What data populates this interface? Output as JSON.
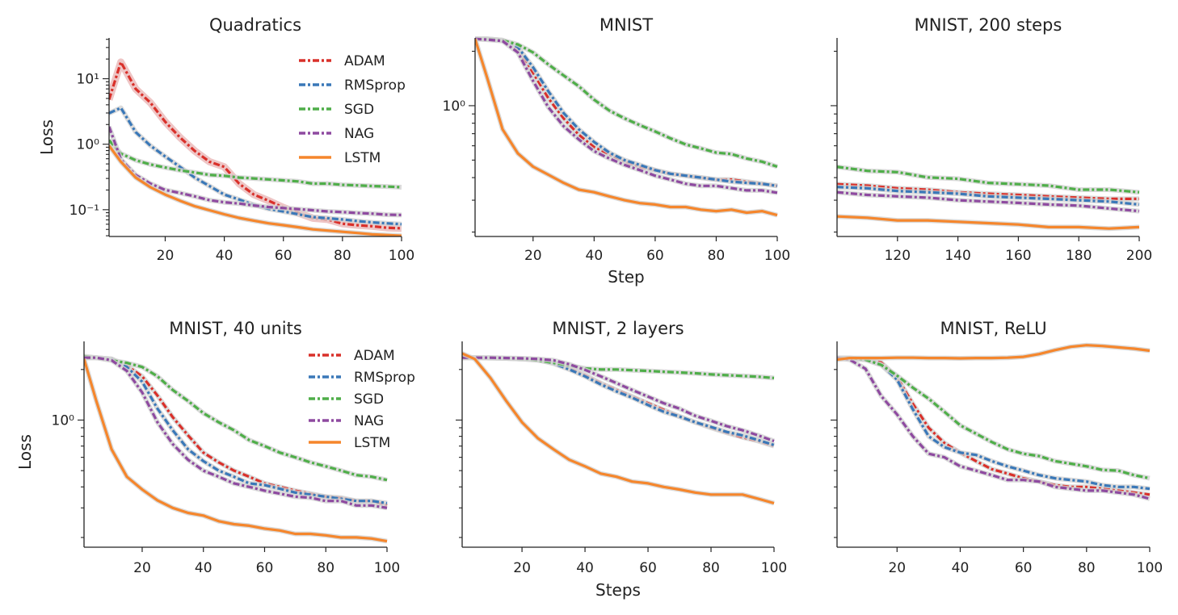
{
  "series_styles": {
    "ADAM": {
      "color": "#d9302a",
      "dashed": true
    },
    "RMSprop": {
      "color": "#3a78b8",
      "dashed": true
    },
    "SGD": {
      "color": "#4fae49",
      "dashed": true
    },
    "NAG": {
      "color": "#8e4aa0",
      "dashed": true
    },
    "LSTM": {
      "color": "#f5862c",
      "dashed": false
    }
  },
  "chart_data": [
    {
      "type": "line",
      "title": "Quadratics",
      "xlabel": "",
      "ylabel": "Loss",
      "yscale": "log",
      "xlim": [
        1,
        100
      ],
      "ylim": [
        0.039,
        42
      ],
      "xticks": [
        {
          "value": 20,
          "label": "20"
        },
        {
          "value": 40,
          "label": "40"
        },
        {
          "value": 60,
          "label": "60"
        },
        {
          "value": 80,
          "label": "80"
        },
        {
          "value": 100,
          "label": "100"
        }
      ],
      "yticks": [
        {
          "value": 10,
          "label": "10¹"
        },
        {
          "value": 1,
          "label": "10⁰"
        },
        {
          "value": 0.1,
          "label": "10⁻¹"
        }
      ],
      "legend": "top-right",
      "x": [
        1,
        5,
        10,
        15,
        20,
        25,
        30,
        35,
        40,
        45,
        50,
        55,
        60,
        65,
        70,
        75,
        80,
        85,
        90,
        95,
        100
      ],
      "series": [
        {
          "name": "ADAM",
          "values": [
            4.8,
            18,
            7,
            4.3,
            2.2,
            1.27,
            0.79,
            0.54,
            0.45,
            0.25,
            0.17,
            0.137,
            0.108,
            0.089,
            0.074,
            0.071,
            0.061,
            0.058,
            0.056,
            0.053,
            0.052
          ]
        },
        {
          "name": "RMSprop",
          "values": [
            2.97,
            3.6,
            1.53,
            0.95,
            0.65,
            0.45,
            0.31,
            0.23,
            0.17,
            0.143,
            0.119,
            0.103,
            0.094,
            0.085,
            0.077,
            0.074,
            0.071,
            0.067,
            0.064,
            0.062,
            0.06
          ]
        },
        {
          "name": "SGD",
          "values": [
            1.15,
            0.72,
            0.57,
            0.49,
            0.44,
            0.4,
            0.37,
            0.34,
            0.33,
            0.31,
            0.3,
            0.29,
            0.28,
            0.27,
            0.25,
            0.25,
            0.24,
            0.235,
            0.23,
            0.226,
            0.22
          ]
        },
        {
          "name": "NAG",
          "values": [
            1.85,
            0.59,
            0.34,
            0.25,
            0.2,
            0.18,
            0.16,
            0.14,
            0.13,
            0.124,
            0.116,
            0.11,
            0.106,
            0.102,
            0.098,
            0.094,
            0.092,
            0.089,
            0.087,
            0.084,
            0.083
          ]
        },
        {
          "name": "LSTM",
          "values": [
            0.95,
            0.54,
            0.31,
            0.22,
            0.17,
            0.137,
            0.113,
            0.098,
            0.085,
            0.075,
            0.068,
            0.062,
            0.058,
            0.054,
            0.05,
            0.048,
            0.046,
            0.044,
            0.042,
            0.041,
            0.04
          ]
        }
      ]
    },
    {
      "type": "line",
      "title": "MNIST",
      "xlabel": "Step",
      "ylabel": "",
      "yscale": "log",
      "xlim": [
        1,
        100
      ],
      "ylim": [
        0.189,
        2.37
      ],
      "xticks": [
        {
          "value": 20,
          "label": "20"
        },
        {
          "value": 40,
          "label": "40"
        },
        {
          "value": 60,
          "label": "60"
        },
        {
          "value": 80,
          "label": "80"
        },
        {
          "value": 100,
          "label": "100"
        }
      ],
      "yticks": [
        {
          "value": 1,
          "label": "10⁰"
        }
      ],
      "x": [
        1,
        5,
        10,
        15,
        20,
        25,
        30,
        35,
        40,
        45,
        50,
        55,
        60,
        65,
        70,
        75,
        80,
        85,
        90,
        95,
        100
      ],
      "series": [
        {
          "name": "ADAM",
          "values": [
            2.34,
            2.34,
            2.3,
            2.04,
            1.52,
            1.1,
            0.85,
            0.69,
            0.59,
            0.54,
            0.49,
            0.46,
            0.44,
            0.42,
            0.41,
            0.4,
            0.39,
            0.39,
            0.38,
            0.37,
            0.36
          ]
        },
        {
          "name": "RMSprop",
          "values": [
            2.34,
            2.34,
            2.3,
            2.11,
            1.63,
            1.2,
            0.91,
            0.74,
            0.63,
            0.55,
            0.5,
            0.47,
            0.44,
            0.42,
            0.41,
            0.4,
            0.39,
            0.38,
            0.374,
            0.37,
            0.36
          ]
        },
        {
          "name": "SGD",
          "values": [
            2.34,
            2.34,
            2.3,
            2.18,
            1.97,
            1.69,
            1.47,
            1.28,
            1.08,
            0.94,
            0.85,
            0.78,
            0.72,
            0.66,
            0.61,
            0.58,
            0.55,
            0.54,
            0.51,
            0.49,
            0.46
          ]
        },
        {
          "name": "NAG",
          "values": [
            2.34,
            2.32,
            2.28,
            1.97,
            1.37,
            0.98,
            0.77,
            0.65,
            0.56,
            0.51,
            0.47,
            0.44,
            0.41,
            0.39,
            0.37,
            0.36,
            0.36,
            0.35,
            0.34,
            0.34,
            0.33
          ]
        },
        {
          "name": "LSTM",
          "values": [
            2.34,
            1.42,
            0.74,
            0.545,
            0.46,
            0.415,
            0.374,
            0.343,
            0.332,
            0.315,
            0.3,
            0.289,
            0.284,
            0.275,
            0.275,
            0.266,
            0.261,
            0.266,
            0.256,
            0.261,
            0.248
          ]
        }
      ]
    },
    {
      "type": "line",
      "title": "MNIST, 200 steps",
      "xlabel": "",
      "ylabel": "",
      "yscale": "log",
      "xlim": [
        100,
        200
      ],
      "ylim": [
        0.189,
        2.37
      ],
      "xticks": [
        {
          "value": 120,
          "label": "120"
        },
        {
          "value": 140,
          "label": "140"
        },
        {
          "value": 160,
          "label": "160"
        },
        {
          "value": 180,
          "label": "180"
        },
        {
          "value": 200,
          "label": "200"
        }
      ],
      "yticks": [],
      "x": [
        100,
        110,
        120,
        130,
        140,
        150,
        160,
        170,
        180,
        190,
        200
      ],
      "series": [
        {
          "name": "ADAM",
          "values": [
            0.368,
            0.361,
            0.349,
            0.343,
            0.332,
            0.326,
            0.321,
            0.315,
            0.31,
            0.305,
            0.305
          ]
        },
        {
          "name": "RMSprop",
          "values": [
            0.355,
            0.349,
            0.337,
            0.332,
            0.326,
            0.315,
            0.31,
            0.305,
            0.3,
            0.295,
            0.284
          ]
        },
        {
          "name": "SGD",
          "values": [
            0.459,
            0.436,
            0.429,
            0.401,
            0.394,
            0.374,
            0.368,
            0.361,
            0.343,
            0.343,
            0.332
          ]
        },
        {
          "name": "NAG",
          "values": [
            0.332,
            0.321,
            0.315,
            0.31,
            0.3,
            0.295,
            0.29,
            0.284,
            0.28,
            0.27,
            0.261
          ]
        },
        {
          "name": "LSTM",
          "values": [
            0.244,
            0.24,
            0.232,
            0.232,
            0.228,
            0.224,
            0.22,
            0.213,
            0.213,
            0.209,
            0.213
          ]
        }
      ]
    },
    {
      "type": "line",
      "title": "MNIST, 40 units",
      "xlabel": "",
      "ylabel": "Loss",
      "yscale": "log",
      "xlim": [
        1,
        100
      ],
      "ylim": [
        0.175,
        2.94
      ],
      "xticks": [
        {
          "value": 20,
          "label": "20"
        },
        {
          "value": 40,
          "label": "40"
        },
        {
          "value": 60,
          "label": "60"
        },
        {
          "value": 80,
          "label": "80"
        },
        {
          "value": 100,
          "label": "100"
        }
      ],
      "yticks": [
        {
          "value": 1,
          "label": "10⁰"
        }
      ],
      "legend": "top-right",
      "x": [
        1,
        5,
        10,
        15,
        20,
        25,
        30,
        35,
        40,
        45,
        50,
        55,
        60,
        65,
        70,
        75,
        80,
        85,
        90,
        95,
        100
      ],
      "series": [
        {
          "name": "ADAM",
          "values": [
            2.35,
            2.35,
            2.31,
            2.11,
            1.82,
            1.4,
            1.04,
            0.81,
            0.64,
            0.56,
            0.5,
            0.46,
            0.42,
            0.4,
            0.38,
            0.365,
            0.35,
            0.345,
            0.33,
            0.33,
            0.31
          ]
        },
        {
          "name": "RMSprop",
          "values": [
            2.35,
            2.35,
            2.31,
            2.07,
            1.69,
            1.17,
            0.87,
            0.67,
            0.57,
            0.5,
            0.46,
            0.42,
            0.41,
            0.39,
            0.37,
            0.36,
            0.35,
            0.34,
            0.33,
            0.33,
            0.32
          ]
        },
        {
          "name": "SGD",
          "values": [
            2.4,
            2.35,
            2.27,
            2.19,
            2.07,
            1.82,
            1.51,
            1.3,
            1.1,
            0.97,
            0.87,
            0.76,
            0.7,
            0.64,
            0.6,
            0.56,
            0.53,
            0.5,
            0.47,
            0.46,
            0.44
          ]
        },
        {
          "name": "NAG",
          "values": [
            2.35,
            2.35,
            2.27,
            1.96,
            1.46,
            0.97,
            0.72,
            0.58,
            0.5,
            0.46,
            0.42,
            0.4,
            0.38,
            0.365,
            0.35,
            0.345,
            0.33,
            0.33,
            0.31,
            0.31,
            0.3
          ]
        },
        {
          "name": "LSTM",
          "values": [
            2.31,
            1.3,
            0.67,
            0.46,
            0.386,
            0.333,
            0.3,
            0.28,
            0.27,
            0.25,
            0.24,
            0.235,
            0.226,
            0.22,
            0.21,
            0.21,
            0.206,
            0.2,
            0.2,
            0.197,
            0.19
          ]
        }
      ]
    },
    {
      "type": "line",
      "title": "MNIST, 2 layers",
      "xlabel": "Steps",
      "ylabel": "",
      "yscale": "log",
      "xlim": [
        1,
        100
      ],
      "ylim": [
        0.175,
        2.94
      ],
      "xticks": [
        {
          "value": 20,
          "label": "20"
        },
        {
          "value": 40,
          "label": "40"
        },
        {
          "value": 60,
          "label": "60"
        },
        {
          "value": 80,
          "label": "80"
        },
        {
          "value": 100,
          "label": "100"
        }
      ],
      "yticks": [],
      "x": [
        1,
        5,
        10,
        15,
        20,
        25,
        30,
        35,
        40,
        45,
        50,
        55,
        60,
        65,
        70,
        75,
        80,
        85,
        90,
        95,
        100
      ],
      "series": [
        {
          "name": "ADAM",
          "values": [
            2.35,
            2.35,
            2.34,
            2.33,
            2.31,
            2.3,
            2.19,
            2.03,
            1.85,
            1.66,
            1.51,
            1.38,
            1.26,
            1.15,
            1.05,
            0.97,
            0.9,
            0.84,
            0.79,
            0.75,
            0.7
          ]
        },
        {
          "name": "RMSprop",
          "values": [
            2.35,
            2.35,
            2.34,
            2.33,
            2.31,
            2.28,
            2.17,
            2.0,
            1.82,
            1.63,
            1.48,
            1.36,
            1.23,
            1.12,
            1.05,
            0.97,
            0.91,
            0.85,
            0.81,
            0.76,
            0.71
          ]
        },
        {
          "name": "SGD",
          "values": [
            2.35,
            2.35,
            2.35,
            2.33,
            2.31,
            2.27,
            2.19,
            2.11,
            2.03,
            2.0,
            2.0,
            1.98,
            1.96,
            1.94,
            1.92,
            1.9,
            1.87,
            1.85,
            1.83,
            1.81,
            1.78
          ]
        },
        {
          "name": "NAG",
          "values": [
            2.35,
            2.35,
            2.35,
            2.34,
            2.33,
            2.31,
            2.27,
            2.15,
            1.99,
            1.82,
            1.66,
            1.51,
            1.38,
            1.26,
            1.17,
            1.06,
            0.99,
            0.92,
            0.87,
            0.81,
            0.75
          ]
        },
        {
          "name": "LSTM",
          "values": [
            2.49,
            2.31,
            1.78,
            1.3,
            0.97,
            0.78,
            0.67,
            0.58,
            0.53,
            0.48,
            0.46,
            0.43,
            0.42,
            0.4,
            0.386,
            0.37,
            0.36,
            0.36,
            0.36,
            0.34,
            0.32
          ]
        }
      ]
    },
    {
      "type": "line",
      "title": "MNIST, ReLU",
      "xlabel": "",
      "ylabel": "",
      "yscale": "log",
      "xlim": [
        1,
        100
      ],
      "ylim": [
        0.175,
        2.94
      ],
      "xticks": [
        {
          "value": 20,
          "label": "20"
        },
        {
          "value": 40,
          "label": "40"
        },
        {
          "value": 60,
          "label": "60"
        },
        {
          "value": 80,
          "label": "80"
        },
        {
          "value": 100,
          "label": "100"
        }
      ],
      "yticks": [],
      "x": [
        1,
        5,
        10,
        15,
        20,
        25,
        30,
        35,
        40,
        45,
        50,
        55,
        60,
        65,
        70,
        75,
        80,
        85,
        90,
        95,
        100
      ],
      "series": [
        {
          "name": "ADAM",
          "values": [
            2.34,
            2.34,
            2.29,
            2.2,
            1.8,
            1.25,
            0.9,
            0.73,
            0.64,
            0.57,
            0.51,
            0.48,
            0.45,
            0.43,
            0.41,
            0.4,
            0.4,
            0.39,
            0.38,
            0.37,
            0.36
          ]
        },
        {
          "name": "RMSprop",
          "values": [
            2.34,
            2.34,
            2.29,
            2.13,
            1.74,
            1.16,
            0.8,
            0.69,
            0.64,
            0.62,
            0.57,
            0.53,
            0.5,
            0.47,
            0.45,
            0.44,
            0.43,
            0.41,
            0.4,
            0.4,
            0.39
          ]
        },
        {
          "name": "SGD",
          "values": [
            2.34,
            2.34,
            2.29,
            2.13,
            1.84,
            1.56,
            1.34,
            1.12,
            0.93,
            0.83,
            0.74,
            0.67,
            0.63,
            0.61,
            0.57,
            0.55,
            0.53,
            0.505,
            0.5,
            0.47,
            0.45
          ]
        },
        {
          "name": "NAG",
          "values": [
            2.34,
            2.29,
            2.02,
            1.39,
            1.08,
            0.8,
            0.63,
            0.6,
            0.53,
            0.5,
            0.47,
            0.44,
            0.44,
            0.43,
            0.4,
            0.39,
            0.38,
            0.38,
            0.37,
            0.36,
            0.34
          ]
        },
        {
          "name": "LSTM",
          "values": [
            2.29,
            2.34,
            2.34,
            2.34,
            2.35,
            2.35,
            2.34,
            2.34,
            2.33,
            2.34,
            2.34,
            2.35,
            2.38,
            2.47,
            2.61,
            2.73,
            2.79,
            2.76,
            2.71,
            2.66,
            2.59
          ]
        }
      ]
    }
  ]
}
